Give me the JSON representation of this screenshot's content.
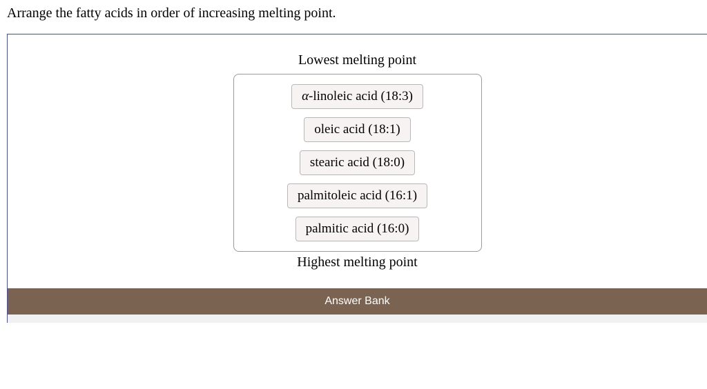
{
  "question": {
    "prompt": "Arrange the fatty acids in order of increasing melting point."
  },
  "ranking": {
    "topLabel": "Lowest melting point",
    "bottomLabel": "Highest melting point",
    "items": [
      {
        "prefix": "α",
        "label": "-linoleic acid (18:3)"
      },
      {
        "prefix": "",
        "label": "oleic acid (18:1)"
      },
      {
        "prefix": "",
        "label": "stearic acid (18:0)"
      },
      {
        "prefix": "",
        "label": "palmitoleic acid (16:1)"
      },
      {
        "prefix": "",
        "label": "palmitic acid (16:0)"
      }
    ]
  },
  "answerBank": {
    "title": "Answer Bank"
  },
  "colors": {
    "panelBorder": "#3a4ec9",
    "tileBg": "#f7f3f3",
    "tileBorder": "#b8b8b8",
    "bankHeaderBg": "#7a6451",
    "bankHeaderText": "#ffffff",
    "bankBodyBg": "#f1f1f1"
  }
}
